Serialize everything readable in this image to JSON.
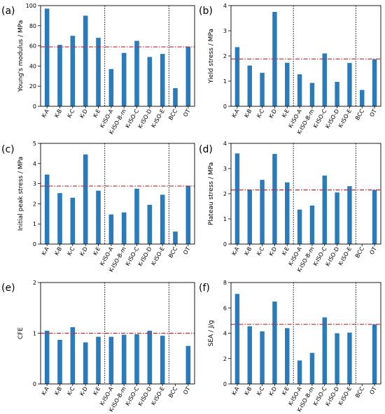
{
  "chart_data": [
    {
      "panel": "(a)",
      "type": "bar",
      "ylabel": "Young's modulus / MPa",
      "ylim": [
        0,
        100
      ],
      "yticks": [
        0,
        20,
        40,
        60,
        80,
        100
      ],
      "categories": [
        "K-A",
        "K-B",
        "K-C",
        "K-D",
        "K-E",
        "K-ISO-A",
        "K-ISO-B-m",
        "K-ISO-C",
        "K-ISO-D",
        "K-ISO-E",
        "BCC",
        "OT"
      ],
      "values": [
        97,
        61,
        70,
        90,
        68,
        37,
        53,
        65,
        49,
        52,
        18,
        59
      ],
      "reference_line": 59,
      "group_separators_after": [
        5,
        10
      ]
    },
    {
      "panel": "(b)",
      "type": "bar",
      "ylabel": "Yield stress / MPa",
      "ylim": [
        0,
        4
      ],
      "yticks": [
        0,
        1,
        2,
        3,
        4
      ],
      "categories": [
        "K-A",
        "K-B",
        "K-C",
        "K-D",
        "K-E",
        "K-ISO-A",
        "K-ISO-B-m",
        "K-ISO-C",
        "K-ISO-D",
        "K-ISO-E",
        "BCC",
        "OT"
      ],
      "values": [
        2.35,
        1.62,
        1.33,
        3.75,
        1.73,
        1.27,
        0.93,
        2.1,
        0.97,
        1.72,
        0.65,
        1.87
      ],
      "reference_line": 1.88,
      "group_separators_after": [
        5,
        10
      ]
    },
    {
      "panel": "(c)",
      "type": "bar",
      "ylabel": "Initial peak stress / MPa",
      "ylim": [
        0,
        5
      ],
      "yticks": [
        0,
        1,
        2,
        3,
        4,
        5
      ],
      "categories": [
        "K-A",
        "K-B",
        "K-C",
        "K-D",
        "K-E",
        "K-ISO-A",
        "K-ISO-B-m",
        "K-ISO-C",
        "K-ISO-D",
        "K-ISO-E",
        "BCC",
        "OT"
      ],
      "values": [
        3.45,
        2.53,
        2.3,
        4.45,
        2.65,
        1.47,
        1.57,
        2.75,
        1.95,
        2.45,
        0.62,
        2.9
      ],
      "reference_line": 2.88,
      "group_separators_after": [
        5,
        10
      ]
    },
    {
      "panel": "(d)",
      "type": "bar",
      "ylabel": "Plateau stress / MPa",
      "ylim": [
        0,
        4
      ],
      "yticks": [
        0,
        1,
        2,
        3,
        4
      ],
      "categories": [
        "K-A",
        "K-B",
        "K-C",
        "K-D",
        "K-E",
        "K-ISO-A",
        "K-ISO-B-m",
        "K-ISO-C",
        "K-ISO-D",
        "K-ISO-E",
        "BCC",
        "OT"
      ],
      "values": [
        3.6,
        2.15,
        2.55,
        3.58,
        2.45,
        1.37,
        1.53,
        2.72,
        2.05,
        2.3,
        null,
        2.15
      ],
      "reference_line": 2.15,
      "group_separators_after": [
        5,
        10
      ]
    },
    {
      "panel": "(e)",
      "type": "bar",
      "ylabel": "CFE",
      "ylim": [
        0,
        2
      ],
      "yticks": [
        0,
        1,
        2
      ],
      "categories": [
        "K-A",
        "K-B",
        "K-C",
        "K-D",
        "K-E",
        "K-ISO-A",
        "K-ISO-B-m",
        "K-ISO-C",
        "K-ISO-D",
        "K-ISO-E",
        "BCC",
        "OT"
      ],
      "values": [
        1.05,
        0.87,
        1.12,
        0.82,
        0.93,
        0.93,
        0.97,
        0.98,
        1.05,
        0.95,
        null,
        0.75
      ],
      "reference_line": 1.0,
      "group_separators_after": [
        5,
        10
      ]
    },
    {
      "panel": "(f)",
      "type": "bar",
      "ylabel": "SEA / J/g",
      "ylim": [
        0,
        8
      ],
      "yticks": [
        0,
        2,
        4,
        6,
        8
      ],
      "categories": [
        "K-A",
        "K-B",
        "K-C",
        "K-D",
        "K-E",
        "K-ISO-A",
        "K-ISO-B-m",
        "K-ISO-C",
        "K-ISO-D",
        "K-ISO-E",
        "BCC",
        "OT"
      ],
      "values": [
        7.1,
        4.55,
        4.15,
        6.5,
        4.4,
        1.85,
        2.45,
        5.25,
        4.0,
        4.05,
        null,
        4.7
      ],
      "reference_line": 4.7,
      "group_separators_after": [
        5,
        10
      ]
    }
  ],
  "colors": {
    "bar": "#2b7bba",
    "reference_line": "#c0282d",
    "separator": "#000000"
  }
}
